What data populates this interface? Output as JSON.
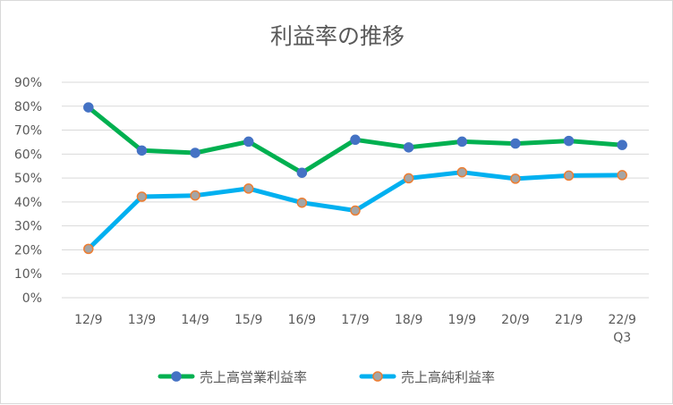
{
  "chart_data": {
    "type": "line",
    "title": "利益率の推移",
    "categories": [
      "12/9",
      "13/9",
      "14/9",
      "15/9",
      "16/9",
      "17/9",
      "18/9",
      "19/9",
      "20/9",
      "21/9",
      "22/9\nQ3"
    ],
    "y_tick_labels": [
      "0%",
      "10%",
      "20%",
      "30%",
      "40%",
      "50%",
      "60%",
      "70%",
      "80%",
      "90%"
    ],
    "ylim": [
      0,
      90
    ],
    "grid": true,
    "legend_position": "bottom",
    "series": [
      {
        "name": "売上高営業利益率",
        "values": [
          79.5,
          61.5,
          60.5,
          65.2,
          52.2,
          66.0,
          62.8,
          65.2,
          64.4,
          65.5,
          63.8
        ],
        "line_color": "#00b050",
        "marker_fill": "#4472c4",
        "marker_stroke": "#4472c4"
      },
      {
        "name": "売上高純利益率",
        "values": [
          20.4,
          42.2,
          42.7,
          45.6,
          39.7,
          36.4,
          49.9,
          52.4,
          49.7,
          51.0,
          51.2
        ],
        "line_color": "#00b0f0",
        "marker_fill": "#a5a5a5",
        "marker_stroke": "#ed7d31"
      }
    ]
  }
}
